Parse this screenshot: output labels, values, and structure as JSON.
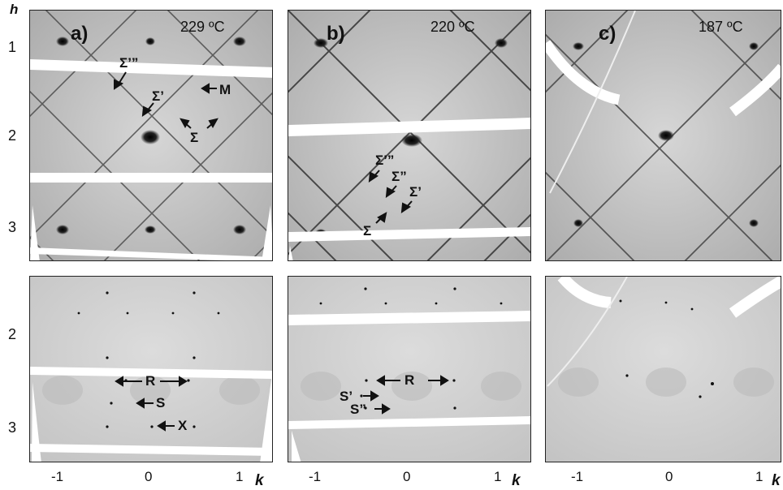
{
  "axes": {
    "h_label": "h",
    "k_label": "k",
    "top_rows": [
      "1",
      "2",
      "3"
    ],
    "bottom_rows": [
      "2",
      "3"
    ],
    "k_ticks": [
      "-1",
      "0",
      "1"
    ]
  },
  "panels": [
    {
      "label": "a)",
      "temperature": "229 ºC",
      "top_annotations": [
        "Σ’”",
        "M",
        "Σ’",
        "Σ"
      ],
      "bottom_annotations": [
        "R",
        "S",
        "X"
      ]
    },
    {
      "label": "b)",
      "temperature": "220 ºC",
      "top_annotations": [
        "Σ’”",
        "Σ”",
        "Σ’",
        "Σ"
      ],
      "bottom_annotations": [
        "R",
        "S’",
        "S”"
      ]
    },
    {
      "label": "c)",
      "temperature": "187 ºC",
      "top_annotations": [],
      "bottom_annotations": []
    }
  ]
}
